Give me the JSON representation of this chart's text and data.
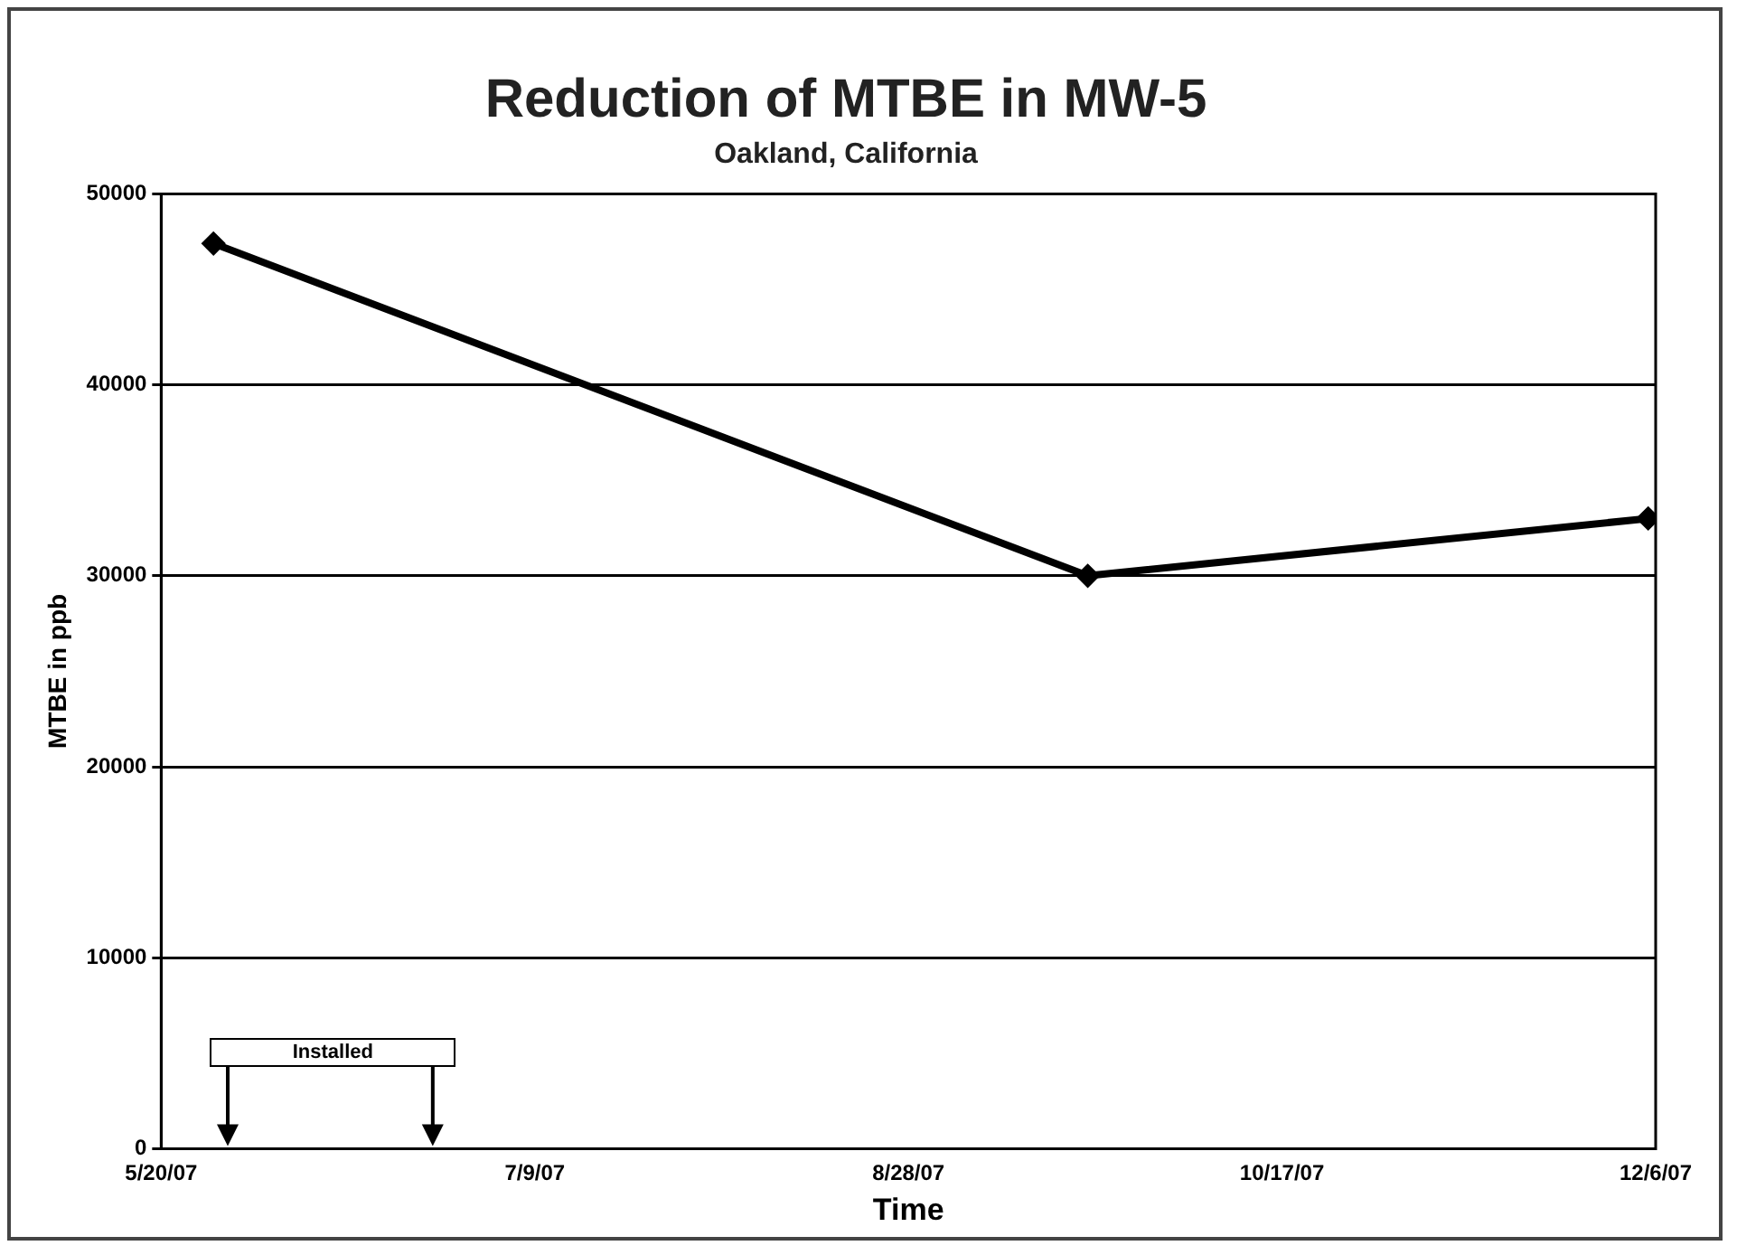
{
  "chart_data": {
    "type": "line",
    "title": "Reduction of MTBE in MW-5",
    "subtitle": "Oakland, California",
    "xlabel": "Time",
    "ylabel": "MTBE in ppb",
    "x": [
      "2007-05-27",
      "2007-09-21",
      "2007-12-05"
    ],
    "series": [
      {
        "color": "#000000",
        "values": [
          47400,
          30000,
          33000
        ]
      }
    ],
    "xlim": [
      "2007-05-20",
      "2007-12-06"
    ],
    "xticks": [
      {
        "value": "2007-05-20",
        "label": "5/20/07"
      },
      {
        "value": "2007-07-09",
        "label": "7/9/07"
      },
      {
        "value": "2007-08-28",
        "label": "8/28/07"
      },
      {
        "value": "2007-10-17",
        "label": "10/17/07"
      },
      {
        "value": "2007-12-06",
        "label": "12/6/07"
      }
    ],
    "ylim": [
      0,
      50000
    ],
    "yticks": [
      0,
      10000,
      20000,
      30000,
      40000,
      50000
    ],
    "grid": "y",
    "marker": "diamond",
    "line_style": "solid",
    "annotations": [
      "Installed"
    ]
  }
}
